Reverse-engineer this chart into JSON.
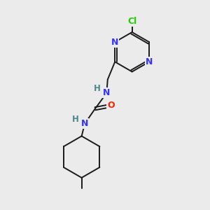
{
  "background_color": "#ebebeb",
  "bond_color": "#1a1a1a",
  "N_color": "#3333ff",
  "O_color": "#ff2200",
  "Cl_color": "#22cc00",
  "H_color": "#4a8888",
  "figsize": [
    3.0,
    3.0
  ],
  "dpi": 100,
  "xlim": [
    0,
    10
  ],
  "ylim": [
    0,
    10
  ]
}
